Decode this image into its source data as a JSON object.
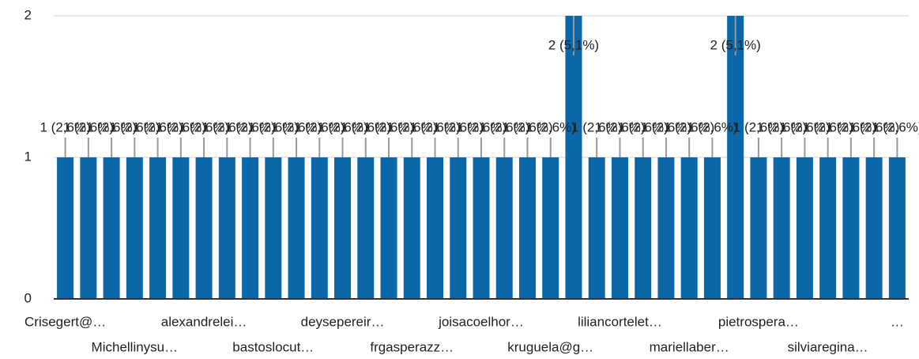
{
  "chart_data": {
    "type": "bar",
    "categories": [
      "Crisegert@…",
      null,
      null,
      "Michellinysu…",
      null,
      null,
      "alexandrelei…",
      null,
      null,
      "bastoslocut…",
      null,
      null,
      "deysepereir…",
      null,
      null,
      "frgasperazz…",
      null,
      null,
      "joisacoelhor…",
      null,
      null,
      "kruguela@g…",
      null,
      null,
      "liliancortelet…",
      null,
      null,
      "mariellaber…",
      null,
      null,
      "pietrospera…",
      null,
      null,
      "silviaregina…",
      null,
      null,
      "…"
    ],
    "values": [
      1,
      1,
      1,
      1,
      1,
      1,
      1,
      1,
      1,
      1,
      1,
      1,
      1,
      1,
      1,
      1,
      1,
      1,
      1,
      1,
      1,
      1,
      2,
      1,
      1,
      1,
      1,
      1,
      1,
      2,
      1,
      1,
      1,
      1,
      1,
      1,
      1
    ],
    "value_labels": [
      "1 (2,6%)",
      "1 (2,6%)",
      "1 (2,6%)",
      "1 (2,6%)",
      "1 (2,6%)",
      "1 (2,6%)",
      "1 (2,6%)",
      "1 (2,6%)",
      "1 (2,6%)",
      "1 (2,6%)",
      "1 (2,6%)",
      "1 (2,6%)",
      "1 (2,6%)",
      "1 (2,6%)",
      "1 (2,6%)",
      "1 (2,6%)",
      "1 (2,6%)",
      "1 (2,6%)",
      "1 (2,6%)",
      "1 (2,6%)",
      "1 (2,6%)",
      "1 (2,6%)",
      "2 (5,1%)",
      "1 (2,6%)",
      "1 (2,6%)",
      "1 (2,6%)",
      "1 (2,6%)",
      "1 (2,6%)",
      "1 (2,6%)",
      "2 (5,1%)",
      "1 (2,6%)",
      "1 (2,6%)",
      "1 (2,6%)",
      "1 (2,6%)",
      "1 (2,6%)",
      "1 (2,6%)",
      "1 (2,6%)"
    ],
    "color": "#0b67a8",
    "ylim": [
      0,
      2
    ],
    "yticks": [
      0,
      1,
      2
    ],
    "grid": true
  }
}
